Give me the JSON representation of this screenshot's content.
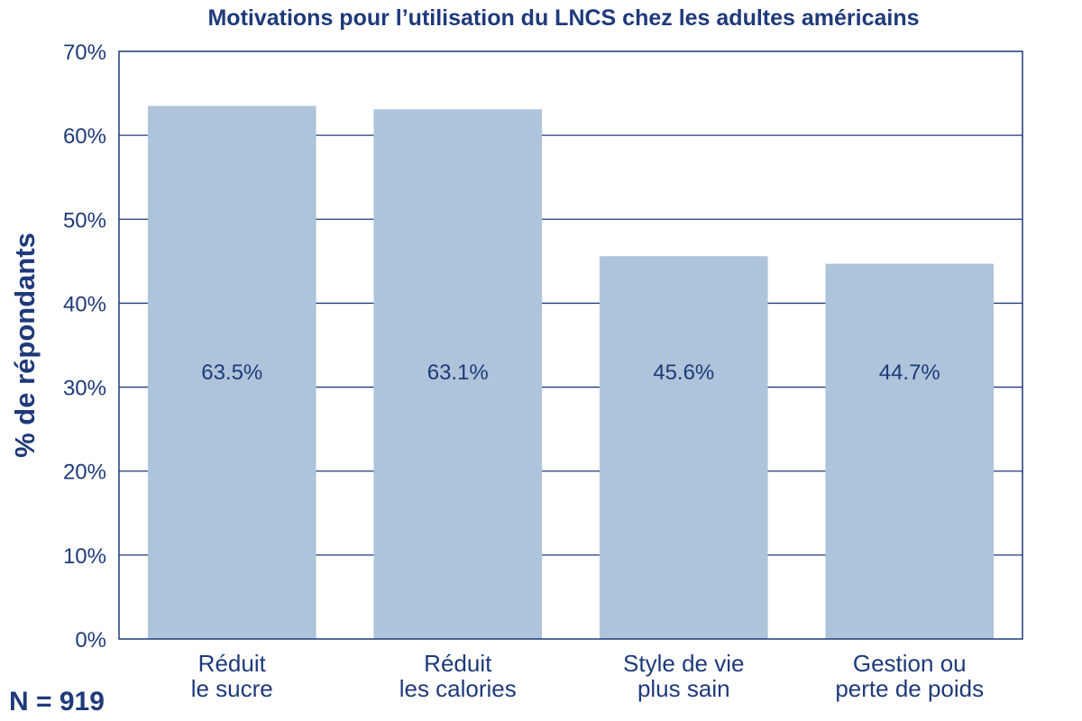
{
  "chart_data": {
    "type": "bar",
    "title": "Motivations pour l’utilisation du LNCS chez les adultes américains",
    "xlabel": "",
    "ylabel": "% de répondants",
    "ylim": [
      0,
      70
    ],
    "y_ticks": [
      0,
      10,
      20,
      30,
      40,
      50,
      60,
      70
    ],
    "y_tick_labels": [
      "0%",
      "10%",
      "20%",
      "30%",
      "40%",
      "50%",
      "60%",
      "70%"
    ],
    "categories": [
      [
        "Réduit",
        "le sucre"
      ],
      [
        "Réduit",
        "les calories"
      ],
      [
        "Style de vie",
        "plus sain"
      ],
      [
        "Gestion ou",
        "perte de poids"
      ]
    ],
    "values": [
      63.5,
      63.1,
      45.6,
      44.7
    ],
    "value_labels": [
      "63.5%",
      "63.1%",
      "45.6%",
      "44.7%"
    ],
    "grid": true,
    "colors": {
      "bar": "#adc4da",
      "text": "#1f3a7a",
      "grid": "#1f3a7a",
      "frame": "#1f3a7a"
    }
  },
  "footnote": "N = 919"
}
